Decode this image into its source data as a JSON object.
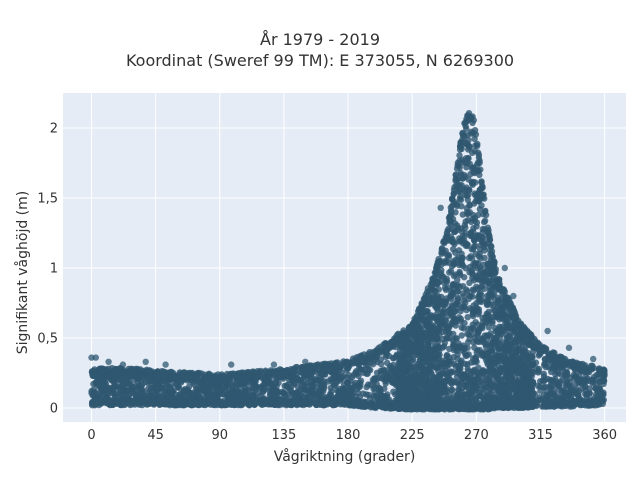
{
  "chart_data": {
    "type": "scatter",
    "title_line1": "År 1979 - 2019",
    "title_line2": "Koordinat (Sweref 99 TM): E 373055, N 6269300",
    "xlabel": "Vågriktning (grader)",
    "ylabel": "Signifikant våghöjd (m)",
    "xlim": [
      -20,
      375
    ],
    "ylim": [
      -0.1,
      2.25
    ],
    "x_ticks": [
      0,
      45,
      90,
      135,
      180,
      225,
      270,
      315,
      360
    ],
    "x_tick_labels": [
      "0",
      "45",
      "90",
      "135",
      "180",
      "225",
      "270",
      "315",
      "360"
    ],
    "y_ticks": [
      0,
      0.5,
      1,
      1.5,
      2
    ],
    "y_tick_labels": [
      "0",
      "0,5",
      "1",
      "1,5",
      "2"
    ],
    "grid": true,
    "legend": "none",
    "marker_color": "#2f5870",
    "background_color": "#e5ecf6",
    "envelope": {
      "x": [
        0,
        20,
        45,
        90,
        135,
        180,
        200,
        225,
        240,
        250,
        258,
        262,
        265,
        268,
        272,
        278,
        285,
        300,
        315,
        335,
        360
      ],
      "y_upper": [
        0.28,
        0.29,
        0.27,
        0.24,
        0.28,
        0.34,
        0.42,
        0.6,
        0.95,
        1.3,
        1.85,
        2.05,
        2.12,
        2.08,
        1.8,
        1.3,
        0.95,
        0.62,
        0.45,
        0.34,
        0.28
      ],
      "y_lower": [
        0.02,
        0.02,
        0.02,
        0.02,
        0.02,
        0.02,
        0.0,
        -0.01,
        -0.01,
        -0.01,
        -0.01,
        -0.01,
        -0.01,
        -0.01,
        -0.01,
        -0.01,
        0.0,
        0.0,
        0.01,
        0.01,
        0.02
      ]
    },
    "outliers": [
      {
        "x": 0,
        "y": 0.36
      },
      {
        "x": 3,
        "y": 0.36
      },
      {
        "x": 12,
        "y": 0.33
      },
      {
        "x": 22,
        "y": 0.31
      },
      {
        "x": 38,
        "y": 0.33
      },
      {
        "x": 52,
        "y": 0.31
      },
      {
        "x": 98,
        "y": 0.31
      },
      {
        "x": 128,
        "y": 0.31
      },
      {
        "x": 150,
        "y": 0.33
      },
      {
        "x": 245,
        "y": 1.43
      },
      {
        "x": 252,
        "y": 1.2
      },
      {
        "x": 245,
        "y": 1.05
      },
      {
        "x": 290,
        "y": 1.0
      },
      {
        "x": 296,
        "y": 0.8
      },
      {
        "x": 320,
        "y": 0.55
      },
      {
        "x": 335,
        "y": 0.43
      },
      {
        "x": 352,
        "y": 0.35
      }
    ]
  }
}
